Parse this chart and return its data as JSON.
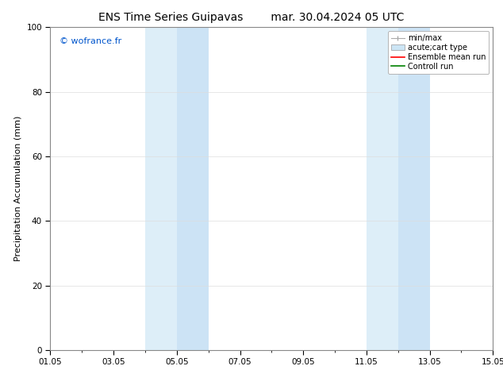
{
  "title_left": "ENS Time Series Guipavas",
  "title_right": "mar. 30.04.2024 05 UTC",
  "ylabel": "Precipitation Accumulation (mm)",
  "ylim": [
    0,
    100
  ],
  "yticks": [
    0,
    20,
    40,
    60,
    80,
    100
  ],
  "background_color": "#ffffff",
  "plot_bg_color": "#ffffff",
  "watermark": "© wofrance.fr",
  "watermark_color": "#0055cc",
  "shaded_bands": [
    {
      "xstart": 4,
      "xend": 5,
      "color": "#ddeef8"
    },
    {
      "xstart": 5,
      "xend": 6,
      "color": "#cce3f5"
    },
    {
      "xstart": 11,
      "xend": 12,
      "color": "#ddeef8"
    },
    {
      "xstart": 12,
      "xend": 13,
      "color": "#cce3f5"
    }
  ],
  "xtick_labels": [
    "01.05",
    "03.05",
    "05.05",
    "07.05",
    "09.05",
    "11.05",
    "13.05",
    "15.05"
  ],
  "xtick_positions": [
    1,
    3,
    5,
    7,
    9,
    11,
    13,
    15
  ],
  "minor_ticks": [
    1,
    2,
    3,
    4,
    5,
    6,
    7,
    8,
    9,
    10,
    11,
    12,
    13,
    14,
    15
  ],
  "x_min": 1,
  "x_max": 15,
  "legend_entries": [
    {
      "label": "min/max",
      "color": "#aaaaaa",
      "type": "line_with_caps"
    },
    {
      "label": "acute;cart type",
      "color": "#cce5f5",
      "type": "filled_box"
    },
    {
      "label": "Ensemble mean run",
      "color": "#ff0000",
      "type": "line"
    },
    {
      "label": "Controll run",
      "color": "#008000",
      "type": "line"
    }
  ],
  "title_fontsize": 10,
  "axis_fontsize": 8,
  "tick_fontsize": 7.5,
  "legend_fontsize": 7
}
